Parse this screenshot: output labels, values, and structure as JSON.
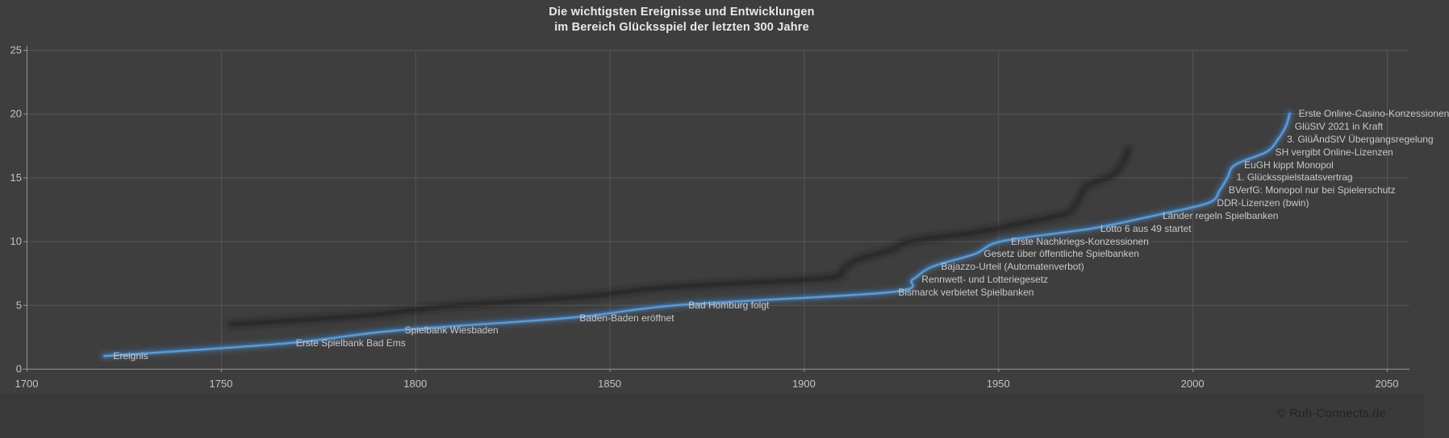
{
  "page": {
    "background": "#3e3e3e",
    "footer_band_color": "#3a3a3a"
  },
  "chart": {
    "title_line1": "Die wichtigsten Ereignisse und Entwicklungen",
    "title_line2": "im Bereich Glücksspiel der letzten 300 Jahre",
    "copyright": "© Ruh-Connects.de"
  },
  "chart_data": {
    "type": "line",
    "title": "Die wichtigsten Ereignisse und Entwicklungen im Bereich Glücksspiel der letzten 300 Jahre",
    "series_name": "Ereignis",
    "legend": "none",
    "grid": true,
    "smoothed": true,
    "x_axis": {
      "min": 1700,
      "max": 2050,
      "tick_step": 50,
      "ticks": [
        1700,
        1750,
        1800,
        1850,
        1900,
        1950,
        2000,
        2050
      ]
    },
    "y_axis": {
      "min": 0,
      "max": 25,
      "tick_step": 5,
      "ticks": [
        0,
        5,
        10,
        15,
        20,
        25
      ]
    },
    "colors": {
      "line": "#5b9bd5",
      "line_glow": "#4a86c8",
      "shadow": "#161616",
      "grid": "#565656",
      "axis": "#969696",
      "tick_text": "#c4c4c4",
      "label_text": "#c9c9c9",
      "title_text": "#e8e8e8"
    },
    "events": [
      {
        "year": 1720,
        "value": 1,
        "label": "Ereignis"
      },
      {
        "year": 1767,
        "value": 2,
        "label": "Erste Spielbank Bad Ems"
      },
      {
        "year": 1795,
        "value": 3,
        "label": "Spielbank Wiesbaden"
      },
      {
        "year": 1840,
        "value": 4,
        "label": "Baden-Baden eröffnet"
      },
      {
        "year": 1868,
        "value": 5,
        "label": "Bad Homburg folgt"
      },
      {
        "year": 1922,
        "value": 6,
        "label": "Bismarck verbietet Spielbanken"
      },
      {
        "year": 1928,
        "value": 7,
        "label": "Rennwett- und Lotteriegesetz"
      },
      {
        "year": 1933,
        "value": 8,
        "label": "Bajazzo-Urteil (Automatenverbot)"
      },
      {
        "year": 1944,
        "value": 9,
        "label": "Gesetz über öffentliche Spielbanken"
      },
      {
        "year": 1951,
        "value": 10,
        "label": "Erste Nachkriegs-Konzessionen"
      },
      {
        "year": 1974,
        "value": 11,
        "label": "Lotto 6 aus 49 startet"
      },
      {
        "year": 1990,
        "value": 12,
        "label": "Länder regeln Spielbanken"
      },
      {
        "year": 2004,
        "value": 13,
        "label": "DDR-Lizenzen (bwin)"
      },
      {
        "year": 2007,
        "value": 14,
        "label": "BVerfG: Monopol nur bei Spielerschutz"
      },
      {
        "year": 2009,
        "value": 15,
        "label": "1. Glücksspielstaatsvertrag"
      },
      {
        "year": 2011,
        "value": 16,
        "label": "EuGH kippt Monopol"
      },
      {
        "year": 2019,
        "value": 17,
        "label": "SH vergibt Online-Lizenzen"
      },
      {
        "year": 2022,
        "value": 18,
        "label": "3. GlüÄndStV Übergangsregelung"
      },
      {
        "year": 2024,
        "value": 19,
        "label": "GlüStV 2021 in Kraft"
      },
      {
        "year": 2025,
        "value": 20,
        "label": "Erste Online-Casino-Konzessionen"
      }
    ]
  }
}
